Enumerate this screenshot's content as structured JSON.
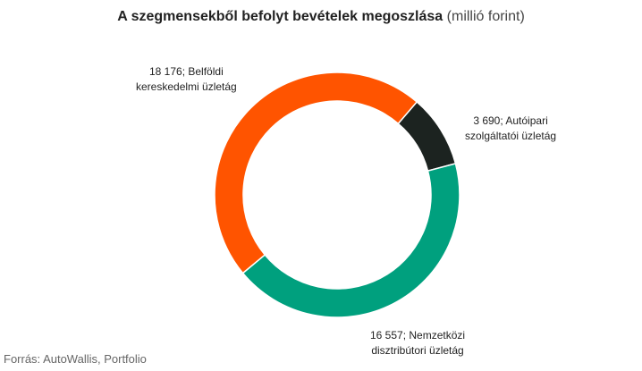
{
  "chart_data": {
    "type": "pie",
    "title_bold": "A szegmensekből befolyt bevételek megoszlása",
    "title_unit": "(millió forint)",
    "series": [
      {
        "name": "Autóipari szolgáltatói üzletág",
        "value": 3690,
        "label_value": "3 690;",
        "label_name_1": "Autóipari",
        "label_name_2": "szolgáltatói  üzletág",
        "color": "#1c2320"
      },
      {
        "name": "Nemzetközi disztribútori üzletág",
        "value": 16557,
        "label_value": "16 557;",
        "label_name_1": "Nemzetközi",
        "label_name_2": "disztribútori  üzletág",
        "color": "#00a07e"
      },
      {
        "name": "Belföldi kereskedelmi üzletág",
        "value": 18176,
        "label_value": "18 176;",
        "label_name_1": "Belföldi",
        "label_name_2": "kereskedelmi  üzletág",
        "color": "#ff5400"
      }
    ],
    "legend": "none",
    "grid": false
  },
  "source": "Forrás: AutoWallis, Portfolio"
}
